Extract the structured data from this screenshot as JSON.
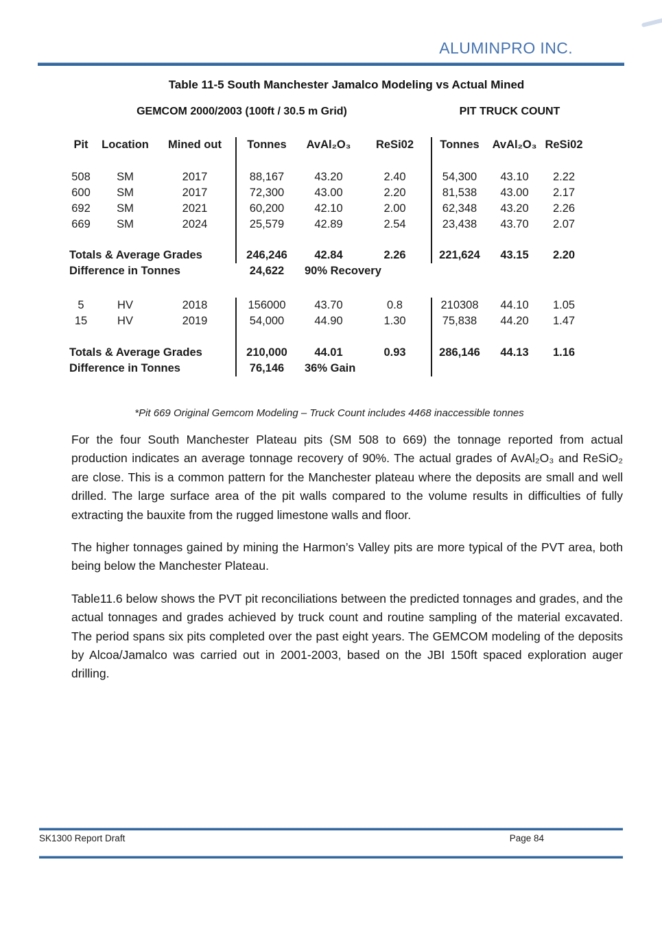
{
  "page": {
    "company": "ALUMINPRO INC.",
    "footer_left": "SK1300 Report Draft",
    "footer_right": "Page 84"
  },
  "colors": {
    "brand_blue": "#4673b0",
    "rule_blue": "#33689e"
  },
  "table": {
    "title": "Table 11-5 South Manchester Jamalco Modeling vs Actual Mined",
    "group_headers": {
      "left": "GEMCOM 2000/2003 (100ft / 30.5 m Grid)",
      "right": "PIT TRUCK COUNT"
    },
    "columns": [
      "Pit",
      "Location",
      "Mined out",
      "Tonnes",
      "AvAl₂O₃",
      "ReSi02",
      "Tonnes",
      "AvAl₂O₃",
      "ReSi02"
    ],
    "sm_rows": [
      [
        "508",
        "SM",
        "2017",
        "88,167",
        "43.20",
        "2.40",
        "54,300",
        "43.10",
        "2.22"
      ],
      [
        "600",
        "SM",
        "2017",
        "72,300",
        "43.00",
        "2.20",
        "81,538",
        "43.00",
        "2.17"
      ],
      [
        "692",
        "SM",
        "2021",
        "60,200",
        "42.10",
        "2.00",
        "62,348",
        "43.20",
        "2.26"
      ],
      [
        "669",
        "SM",
        "2024",
        "25,579",
        "42.89",
        "2.54",
        "23,438",
        "43.70",
        "2.07"
      ]
    ],
    "sm_totals": {
      "label": "Totals & Average Grades",
      "values": [
        "246,246",
        "42.84",
        "2.26",
        "221,624",
        "43.15",
        "2.20"
      ]
    },
    "sm_diff": {
      "label": "Difference in Tonnes",
      "tonnes": "24,622",
      "note": "90% Recovery"
    },
    "hv_rows": [
      [
        "5",
        "HV",
        "2018",
        "156000",
        "43.70",
        "0.8",
        "210308",
        "44.10",
        "1.05"
      ],
      [
        "15",
        "HV",
        "2019",
        "54,000",
        "44.90",
        "1.30",
        "75,838",
        "44.20",
        "1.47"
      ]
    ],
    "hv_totals": {
      "label": "Totals & Average Grades",
      "values": [
        "210,000",
        "44.01",
        "0.93",
        "286,146",
        "44.13",
        "1.16"
      ]
    },
    "hv_diff": {
      "label": "Difference in Tonnes",
      "tonnes": "76,146",
      "note": "36% Gain"
    },
    "footnote": "*Pit 669 Original Gemcom Modeling – Truck Count includes 4468 inaccessible tonnes"
  },
  "body": {
    "paragraphs": [
      "For the four South Manchester Plateau pits (SM 508 to 669) the tonnage reported from actual production indicates an average tonnage recovery of 90%. The actual grades of AvAl₂O₃ and ReSiO₂ are close. This is a common pattern for the Manchester plateau where the deposits are small and well drilled. The large surface area of the pit walls compared to the volume results in difficulties of fully extracting the bauxite from the rugged limestone walls and floor.",
      "The higher tonnages gained by mining the Harmon’s Valley pits are more typical of the PVT area, both being below the Manchester Plateau.",
      "Table11.6 below shows the PVT pit reconciliations between the predicted tonnages and grades, and the actual tonnages and grades achieved by truck count and routine sampling of the material excavated. The period spans six pits completed over the past eight years. The GEMCOM modeling of the deposits by Alcoa/Jamalco was carried out in 2001-2003, based on the JBI 150ft spaced exploration auger drilling."
    ]
  }
}
